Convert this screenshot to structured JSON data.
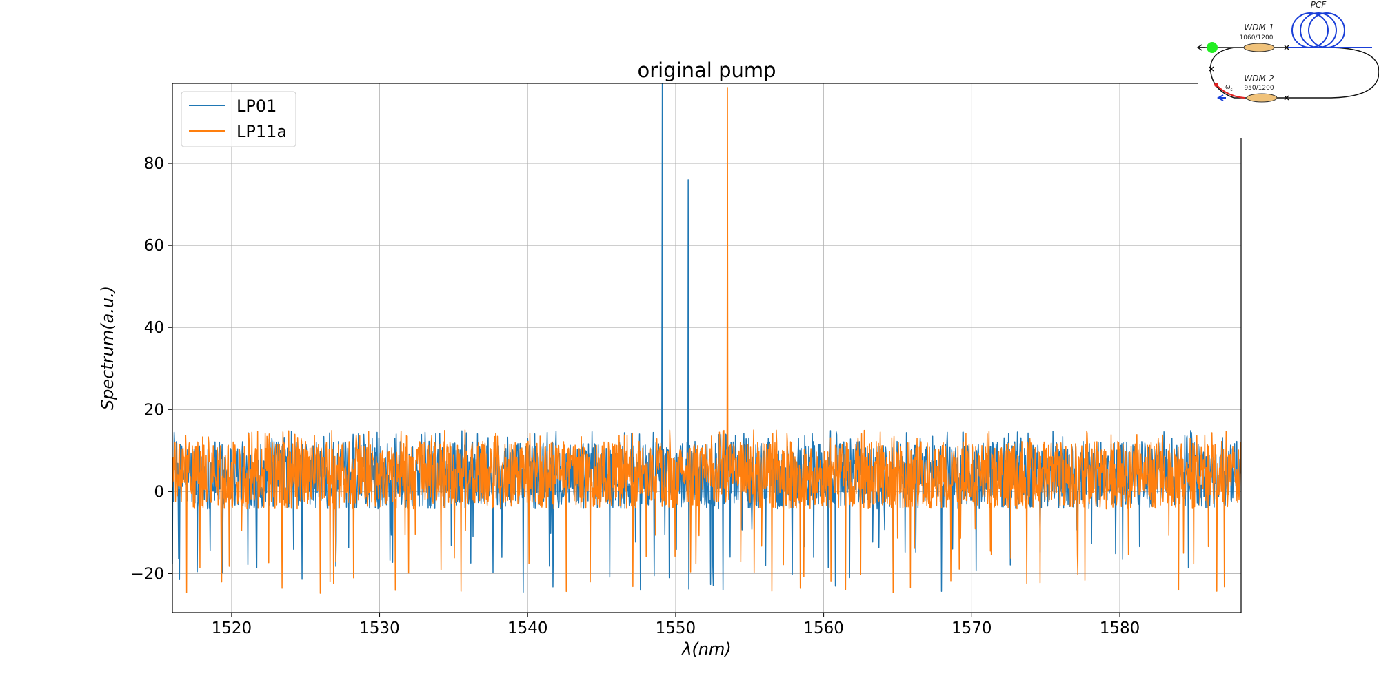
{
  "chart_data": {
    "type": "line",
    "title": "original pump",
    "xlabel": "λ(nm)",
    "ylabel": "Spectrum(a.u.)",
    "xlim": [
      1516,
      1588.2
    ],
    "ylim": [
      -29.5,
      99.5
    ],
    "xticks": [
      1520,
      1530,
      1540,
      1550,
      1560,
      1570,
      1580
    ],
    "yticks": [
      -20,
      0,
      20,
      40,
      60,
      80
    ],
    "xtick_labels": [
      "1520",
      "1530",
      "1540",
      "1550",
      "1560",
      "1570",
      "1580"
    ],
    "ytick_labels": [
      "−20",
      "0",
      "20",
      "40",
      "60",
      "80"
    ],
    "grid": true,
    "legend_position": "upper-left",
    "noise": {
      "mean": 4,
      "spread_up": 11,
      "spread_down": 29,
      "step_nm": 0.03
    },
    "series": [
      {
        "name": "LP01",
        "color": "#1f77b4",
        "peaks": [
          {
            "x": 1549.1,
            "y": 99.5
          },
          {
            "x": 1550.85,
            "y": 76
          }
        ]
      },
      {
        "name": "LP11a",
        "color": "#ff7f0e",
        "peaks": [
          {
            "x": 1553.5,
            "y": 98.5
          }
        ]
      }
    ]
  },
  "inset": {
    "labels": {
      "pcf": "PCF",
      "wdm1": "WDM-1",
      "wdm1_spec": "1060/1200",
      "wdm2": "WDM-2",
      "wdm2_spec": "950/1200",
      "omega": "ω"
    },
    "colors": {
      "coil": "#1a3fd8",
      "coupler": "#f0c27a",
      "dot": "#22ee22",
      "signal": "#e02020"
    }
  }
}
